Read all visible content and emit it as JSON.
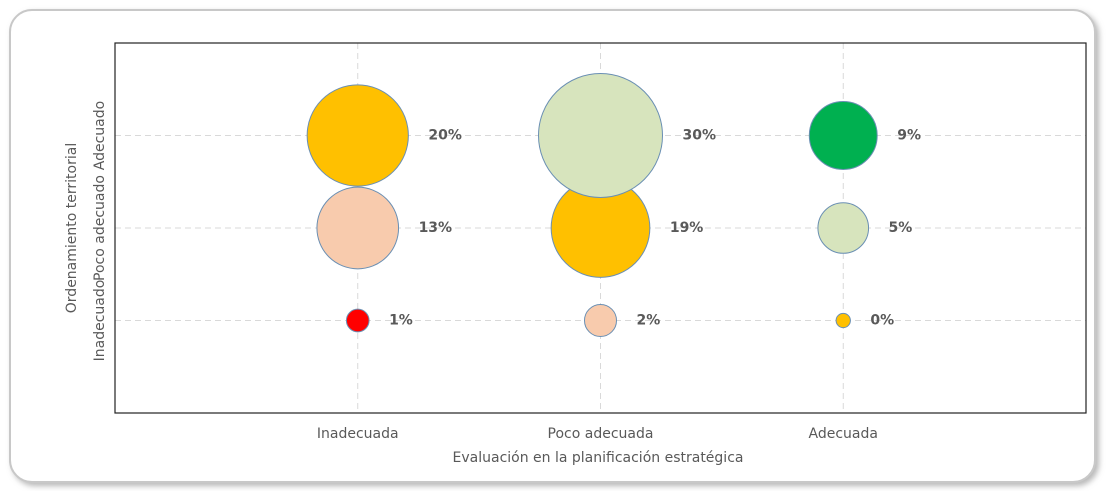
{
  "chart_data": {
    "type": "bubble",
    "xlabel": "Evaluación en la planificación estratégica",
    "ylabel": "Ordenamiento territorial",
    "categories": [
      "Inadecuada",
      "Poco adecuada",
      "Adecuada"
    ],
    "grid": true,
    "series": [
      {
        "name": "Inadecuado",
        "values": [
          1,
          2,
          0.4
        ],
        "value_labels": [
          "1%",
          "2%",
          "0%"
        ],
        "colors": [
          "#FF0000",
          "#F8CBAD",
          "#FFC000"
        ]
      },
      {
        "name": "Poco adecuado",
        "values": [
          13,
          19,
          5
        ],
        "value_labels": [
          "13%",
          "19%",
          "5%"
        ],
        "colors": [
          "#F8CBAD",
          "#FFC000",
          "#D7E4BD"
        ]
      },
      {
        "name": "Adecuado",
        "values": [
          20,
          30,
          9
        ],
        "value_labels": [
          "20%",
          "30%",
          "9%"
        ],
        "colors": [
          "#FFC000",
          "#D7E4BD",
          "#00B050"
        ]
      }
    ]
  }
}
